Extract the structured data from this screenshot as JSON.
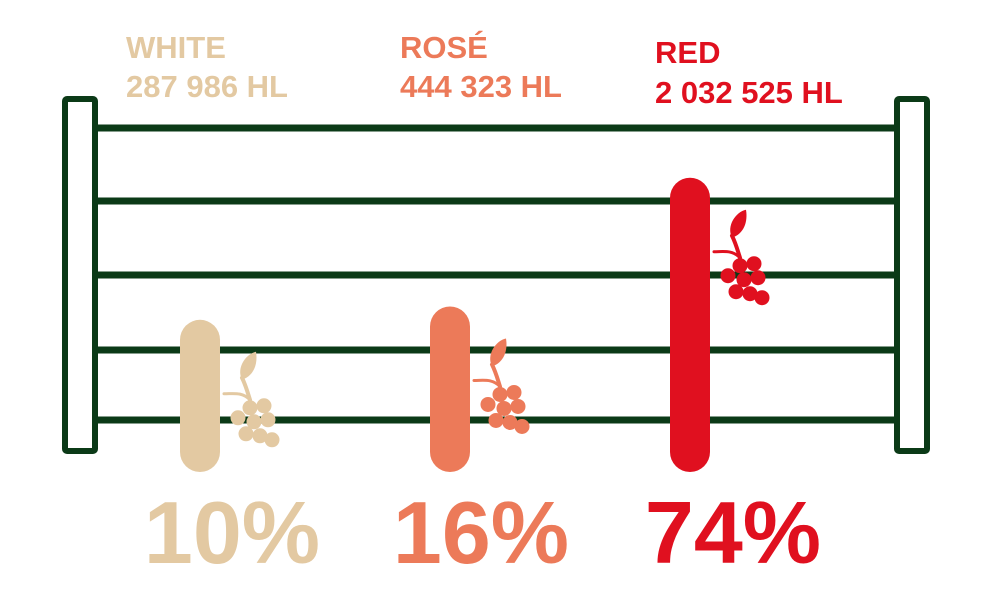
{
  "chart_data": {
    "type": "bar",
    "categories": [
      "WHITE",
      "ROSÉ",
      "RED"
    ],
    "volumes": [
      "287 986 HL",
      "444 323 HL",
      "2 032 525 HL"
    ],
    "values": [
      10,
      16,
      74
    ],
    "value_labels": [
      "10%",
      "16%",
      "74%"
    ],
    "unit": "%",
    "colors": [
      "#e3c9a2",
      "#ec7a59",
      "#e0101f"
    ],
    "frame_color": "#0b3a17",
    "icons": [
      "grape-cluster-icon",
      "grape-cluster-icon",
      "grape-cluster-icon"
    ],
    "ylim": [
      0,
      100
    ],
    "grid": true,
    "legend": "none"
  }
}
